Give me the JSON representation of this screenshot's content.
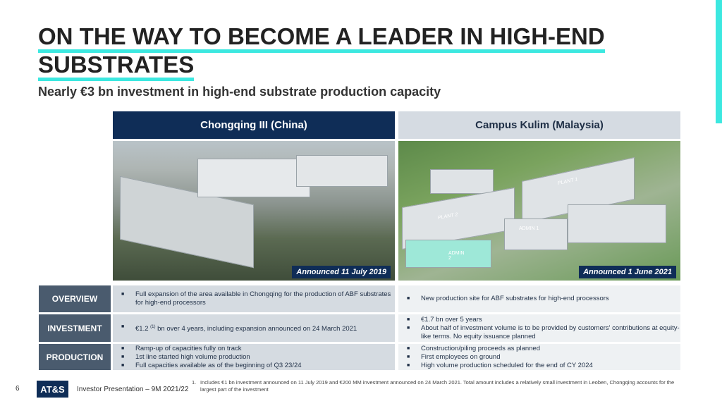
{
  "title": "ON THE WAY TO BECOME A LEADER IN HIGH-END SUBSTRATES",
  "title_line1": "ON THE WAY TO BECOME A LEADER IN HIGH-END",
  "title_line2": "SUBSTRATES",
  "subtitle": "Nearly €3 bn investment in high-end substrate production capacity",
  "columns": [
    {
      "header": "Chongqing III (China)",
      "announced": "Announced 11 July 2019"
    },
    {
      "header": "Campus Kulim (Malaysia)",
      "announced": "Announced 1 June 2021"
    }
  ],
  "rows": [
    {
      "label": "OVERVIEW",
      "col1": [
        "Full expansion of the area available in Chongqing for the production of ABF substrates for high-end processors"
      ],
      "col2": [
        "New production site for ABF substrates for high-end processors"
      ]
    },
    {
      "label": "INVESTMENT",
      "col1_prefix": "€1.2",
      "col1_sup": "(1)",
      "col1_suffix": " bn over 4 years, including expansion announced on 24 March 2021",
      "col2": [
        "€1.7 bn over 5 years",
        "About half of investment volume is to be provided by customers' contributions at equity-like terms. No equity issuance planned"
      ]
    },
    {
      "label": "PRODUCTION",
      "col1": [
        "Ramp-up of capacities fully on track",
        "1st line started high volume production",
        "Full capacities available as of the beginning of Q3 23/24"
      ],
      "col2": [
        "Construction/piling proceeds as planned",
        "First employees on ground",
        "High volume production scheduled for the end of CY 2024"
      ]
    }
  ],
  "image_labels": [
    "PLANT 1",
    "PLANT 2",
    "ADMIN 1",
    "ADMIN 2"
  ],
  "footer": {
    "page": "6",
    "logo": "AT&S",
    "text": "Investor Presentation – 9M 2021/22",
    "note_num": "1.",
    "note": "Includes €1 bn investment announced on 11 July 2019 and €200 MM investment announced on 24 March 2021. Total amount includes a relatively small investment in Leoben, Chongqing accounts for the largest part of the investment"
  },
  "colors": {
    "accent": "#3ce8e0",
    "navy": "#0f2d57",
    "label_bg": "#4a5b6e"
  }
}
